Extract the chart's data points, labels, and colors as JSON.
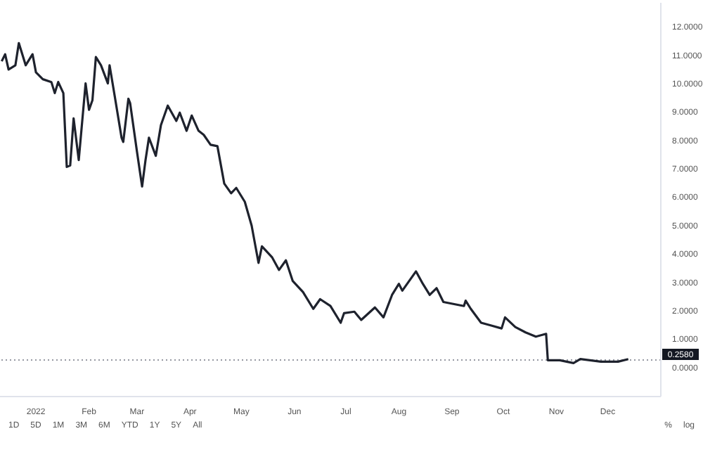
{
  "chart_data": {
    "type": "line",
    "x": [
      "2021-12-12",
      "2021-12-14",
      "2021-12-16",
      "2021-12-20",
      "2021-12-22",
      "2021-12-26",
      "2021-12-30",
      "2022-01-01",
      "2022-01-05",
      "2022-01-10",
      "2022-01-12",
      "2022-01-14",
      "2022-01-17",
      "2022-01-19",
      "2022-01-21",
      "2022-01-23",
      "2022-01-26",
      "2022-01-30",
      "2022-02-01",
      "2022-02-03",
      "2022-02-05",
      "2022-02-08",
      "2022-02-12",
      "2022-02-13",
      "2022-02-16",
      "2022-02-20",
      "2022-02-21",
      "2022-02-24",
      "2022-02-25",
      "2022-03-01",
      "2022-03-04",
      "2022-03-06",
      "2022-03-08",
      "2022-03-12",
      "2022-03-15",
      "2022-03-19",
      "2022-03-24",
      "2022-03-26",
      "2022-03-30",
      "2022-04-02",
      "2022-04-06",
      "2022-04-09",
      "2022-04-13",
      "2022-04-17",
      "2022-04-21",
      "2022-04-25",
      "2022-04-28",
      "2022-05-03",
      "2022-05-07",
      "2022-05-08",
      "2022-05-11",
      "2022-05-13",
      "2022-05-19",
      "2022-05-23",
      "2022-05-27",
      "2022-05-31",
      "2022-06-06",
      "2022-06-12",
      "2022-06-16",
      "2022-06-22",
      "2022-06-28",
      "2022-06-30",
      "2022-07-06",
      "2022-07-10",
      "2022-07-18",
      "2022-07-23",
      "2022-07-28",
      "2022-08-01",
      "2022-08-03",
      "2022-08-11",
      "2022-08-15",
      "2022-08-19",
      "2022-08-23",
      "2022-08-27",
      "2022-09-08",
      "2022-09-09",
      "2022-09-12",
      "2022-09-18",
      "2022-09-24",
      "2022-09-30",
      "2022-10-02",
      "2022-10-08",
      "2022-10-14",
      "2022-10-20",
      "2022-10-26",
      "2022-10-27",
      "2022-11-03",
      "2022-11-11",
      "2022-11-15",
      "2022-11-27",
      "2022-12-07",
      "2022-12-13"
    ],
    "series": [
      {
        "color": "#1e222d",
        "values": [
          10.78,
          11.03,
          10.49,
          10.64,
          11.42,
          10.64,
          11.03,
          10.39,
          10.15,
          10.05,
          9.66,
          10.05,
          9.66,
          7.06,
          7.11,
          8.77,
          7.3,
          10.0,
          9.07,
          9.41,
          10.93,
          10.64,
          10.0,
          10.64,
          9.56,
          8.09,
          7.94,
          9.46,
          9.31,
          7.6,
          6.37,
          7.3,
          8.09,
          7.45,
          8.53,
          9.22,
          8.68,
          8.97,
          8.33,
          8.87,
          8.33,
          8.19,
          7.84,
          7.79,
          6.47,
          6.13,
          6.32,
          5.83,
          4.99,
          4.66,
          3.68,
          4.26,
          3.87,
          3.43,
          3.77,
          3.04,
          2.65,
          2.06,
          2.4,
          2.16,
          1.57,
          1.91,
          1.96,
          1.67,
          2.11,
          1.76,
          2.55,
          2.94,
          2.7,
          3.38,
          2.94,
          2.55,
          2.79,
          2.3,
          2.16,
          2.35,
          2.06,
          1.57,
          1.47,
          1.37,
          1.76,
          1.42,
          1.23,
          1.08,
          1.18,
          0.25,
          0.25,
          0.15,
          0.29,
          0.2,
          0.2,
          0.29
        ]
      }
    ],
    "xlim": [
      "2021-12-11",
      "2023-01-01"
    ],
    "xticks": [
      {
        "value": "2022-01-01",
        "label": "2022"
      },
      {
        "value": "2022-02-01",
        "label": "Feb"
      },
      {
        "value": "2022-03-01",
        "label": "Mar"
      },
      {
        "value": "2022-04-01",
        "label": "Apr"
      },
      {
        "value": "2022-05-01",
        "label": "May"
      },
      {
        "value": "2022-06-01",
        "label": "Jun"
      },
      {
        "value": "2022-07-01",
        "label": "Jul"
      },
      {
        "value": "2022-08-01",
        "label": "Aug"
      },
      {
        "value": "2022-09-01",
        "label": "Sep"
      },
      {
        "value": "2022-10-01",
        "label": "Oct"
      },
      {
        "value": "2022-11-01",
        "label": "Nov"
      },
      {
        "value": "2022-12-01",
        "label": "Dec"
      }
    ],
    "ylim": [
      -1.03,
      12.84
    ],
    "yticks": [
      {
        "value": 0,
        "label": "0.0000"
      },
      {
        "value": 1,
        "label": "1.0000"
      },
      {
        "value": 2,
        "label": "2.0000"
      },
      {
        "value": 3,
        "label": "3.0000"
      },
      {
        "value": 4,
        "label": "4.0000"
      },
      {
        "value": 5,
        "label": "5.0000"
      },
      {
        "value": 6,
        "label": "6.0000"
      },
      {
        "value": 7,
        "label": "7.0000"
      },
      {
        "value": 8,
        "label": "8.0000"
      },
      {
        "value": 9,
        "label": "9.0000"
      },
      {
        "value": 10,
        "label": "10.0000"
      },
      {
        "value": 11,
        "label": "11.0000"
      },
      {
        "value": 12,
        "label": "12.0000"
      }
    ],
    "ref_lines": [
      {
        "axis": "y",
        "value": 0.258,
        "label": "0.2580",
        "color": "#9598a1",
        "line_style": "dotted"
      }
    ],
    "annotations": [
      "1D",
      "5D",
      "1M",
      "3M",
      "6M",
      "YTD",
      "1Y",
      "5Y",
      "All",
      "%",
      "log"
    ],
    "marker": "none"
  }
}
